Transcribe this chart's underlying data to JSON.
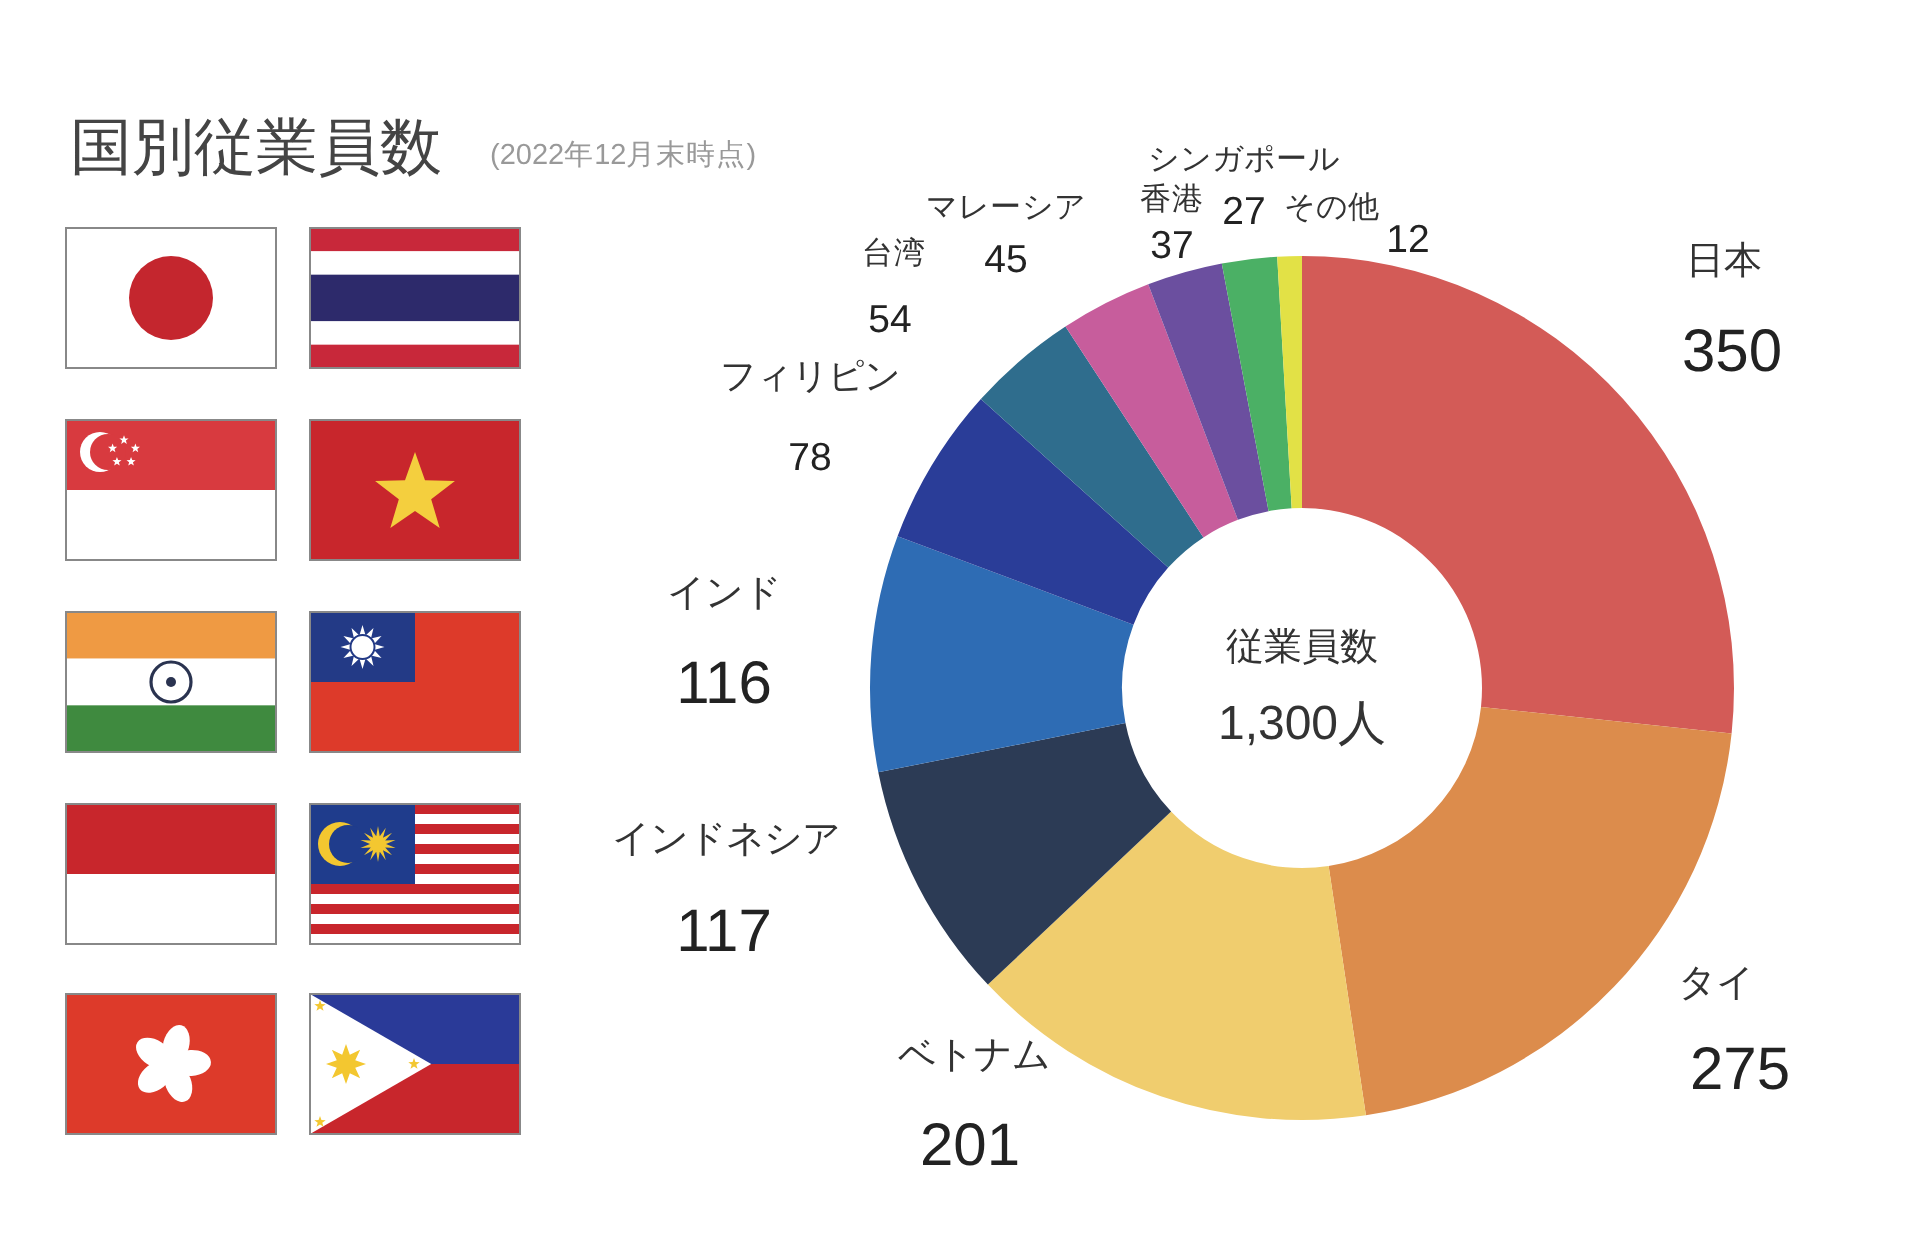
{
  "chart_data": {
    "type": "donut",
    "title": "国別従業員数",
    "subtitle": "(2022年12月末時点)",
    "categories": [
      "日本",
      "タイ",
      "ベトナム",
      "インドネシア",
      "インド",
      "フィリピン",
      "台湾",
      "マレーシア",
      "香港",
      "シンガポール",
      "その他"
    ],
    "values": [
      350,
      275,
      201,
      117,
      116,
      78,
      54,
      45,
      37,
      27,
      12
    ],
    "colors": [
      "#d35b57",
      "#dc8c4c",
      "#f0cd6e",
      "#2c3b55",
      "#2e6cb4",
      "#2a3d98",
      "#2f6d8d",
      "#c75d9c",
      "#6b4f9f",
      "#4bb065",
      "#e2e146"
    ],
    "data_labels": true,
    "annotations": [
      "従業員数",
      "1,300人"
    ]
  }
}
